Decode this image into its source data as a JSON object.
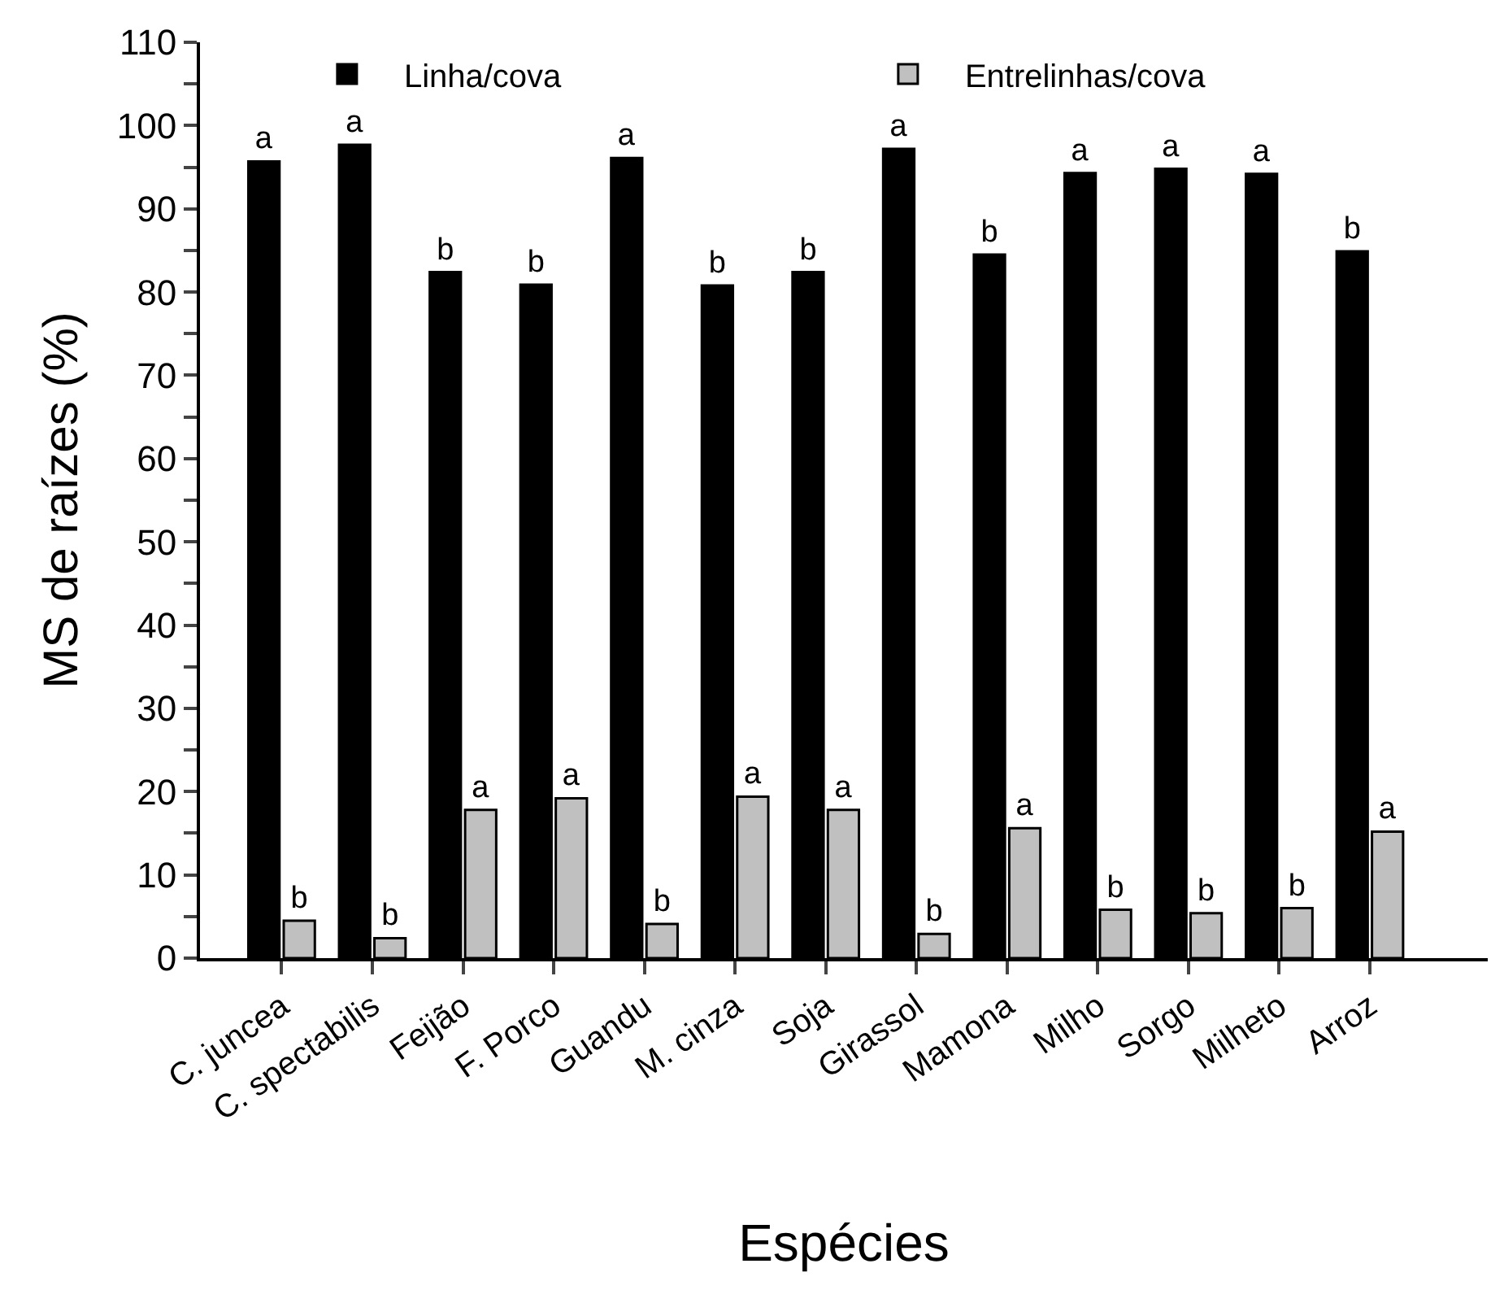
{
  "chart_data": {
    "type": "bar",
    "xlabel": "Espécies",
    "ylabel": "MS de raízes (%)",
    "categories": [
      "C. juncea",
      "C. spectabilis",
      "Feijão",
      "F. Porco",
      "Guandu",
      "M. cinza",
      "Soja",
      "Girassol",
      "Mamona",
      "Milho",
      "Sorgo",
      "Milheto",
      "Arroz"
    ],
    "series": [
      {
        "name": "Linha/cova",
        "color": "#000000",
        "values": [
          95.7,
          97.7,
          82.4,
          80.9,
          96.1,
          80.8,
          82.4,
          97.2,
          84.5,
          94.3,
          94.8,
          94.2,
          84.9
        ],
        "value_labels": [
          "a",
          "a",
          "b",
          "b",
          "a",
          "b",
          "b",
          "a",
          "b",
          "a",
          "a",
          "a",
          "b"
        ]
      },
      {
        "name": "Entrelinhas/cova",
        "color": "#c0c0c0",
        "values": [
          4.5,
          2.4,
          17.8,
          19.2,
          4.1,
          19.4,
          17.8,
          2.9,
          15.6,
          5.8,
          5.4,
          6.0,
          15.2
        ],
        "value_labels": [
          "b",
          "b",
          "a",
          "a",
          "b",
          "a",
          "a",
          "b",
          "a",
          "b",
          "b",
          "b",
          "a"
        ]
      }
    ],
    "ylim": [
      0,
      110
    ],
    "yticks": [
      0,
      {
        "value": 5,
        "label": null
      },
      10,
      {
        "value": 15,
        "label": null
      },
      20,
      {
        "value": 25,
        "label": null
      },
      30,
      {
        "value": 35,
        "label": null
      },
      40,
      {
        "value": 45,
        "label": null
      },
      50,
      {
        "value": 55,
        "label": null
      },
      60,
      {
        "value": 65,
        "label": null
      },
      70,
      {
        "value": 75,
        "label": null
      },
      80,
      {
        "value": 85,
        "label": null
      },
      90,
      {
        "value": 95,
        "label": null
      },
      100,
      {
        "value": 105,
        "label": null
      },
      110
    ],
    "legend": "top"
  }
}
